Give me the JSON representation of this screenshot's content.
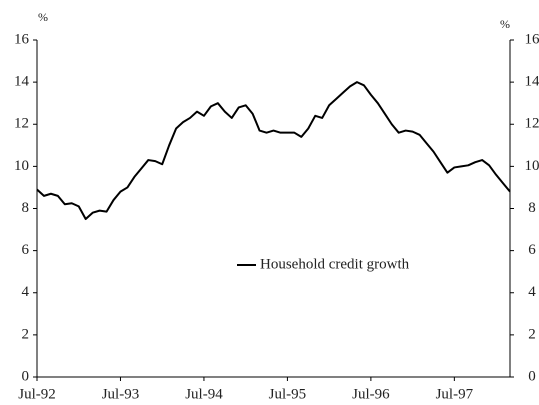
{
  "chart_data": {
    "type": "line",
    "y_unit": "%",
    "y2_unit": "%",
    "categories": [
      "Jul-92",
      null,
      null,
      null,
      null,
      null,
      null,
      null,
      null,
      null,
      null,
      null,
      "Jul-93",
      null,
      null,
      null,
      null,
      null,
      null,
      null,
      null,
      null,
      null,
      null,
      "Jul-94",
      null,
      null,
      null,
      null,
      null,
      null,
      null,
      null,
      null,
      null,
      null,
      "Jul-95",
      null,
      null,
      null,
      null,
      null,
      null,
      null,
      null,
      null,
      null,
      null,
      "Jul-96",
      null,
      null,
      null,
      null,
      null,
      null,
      null,
      null,
      null,
      null,
      null,
      "Jul-97",
      null,
      null,
      null,
      null,
      null,
      null,
      null,
      null
    ],
    "series": [
      {
        "name": "Household credit growth",
        "color": "#000000",
        "values": [
          8.9,
          8.6,
          8.7,
          8.6,
          8.2,
          8.25,
          8.1,
          7.5,
          7.8,
          7.9,
          7.85,
          8.4,
          8.8,
          9.0,
          9.5,
          9.9,
          10.3,
          10.25,
          10.1,
          11.0,
          11.8,
          12.1,
          12.3,
          12.6,
          12.4,
          12.85,
          13.0,
          12.6,
          12.3,
          12.8,
          12.9,
          12.5,
          11.7,
          11.6,
          11.7,
          11.6,
          11.6,
          11.6,
          11.4,
          11.8,
          12.4,
          12.3,
          12.9,
          13.2,
          13.5,
          13.8,
          14.0,
          13.85,
          13.4,
          13.0,
          12.5,
          12.0,
          11.6,
          11.7,
          11.65,
          11.5,
          11.1,
          10.7,
          10.2,
          9.7,
          9.95,
          10.0,
          10.05,
          10.2,
          10.3,
          10.05,
          9.6,
          9.2,
          8.8
        ]
      }
    ],
    "ylim": [
      0,
      16
    ],
    "yticks": [
      0,
      2,
      4,
      6,
      8,
      10,
      12,
      14,
      16
    ],
    "y2lim": [
      0,
      16
    ],
    "y2ticks": [
      0,
      2,
      4,
      6,
      8,
      10,
      12,
      14,
      16
    ],
    "grid": false,
    "legend": "center"
  }
}
